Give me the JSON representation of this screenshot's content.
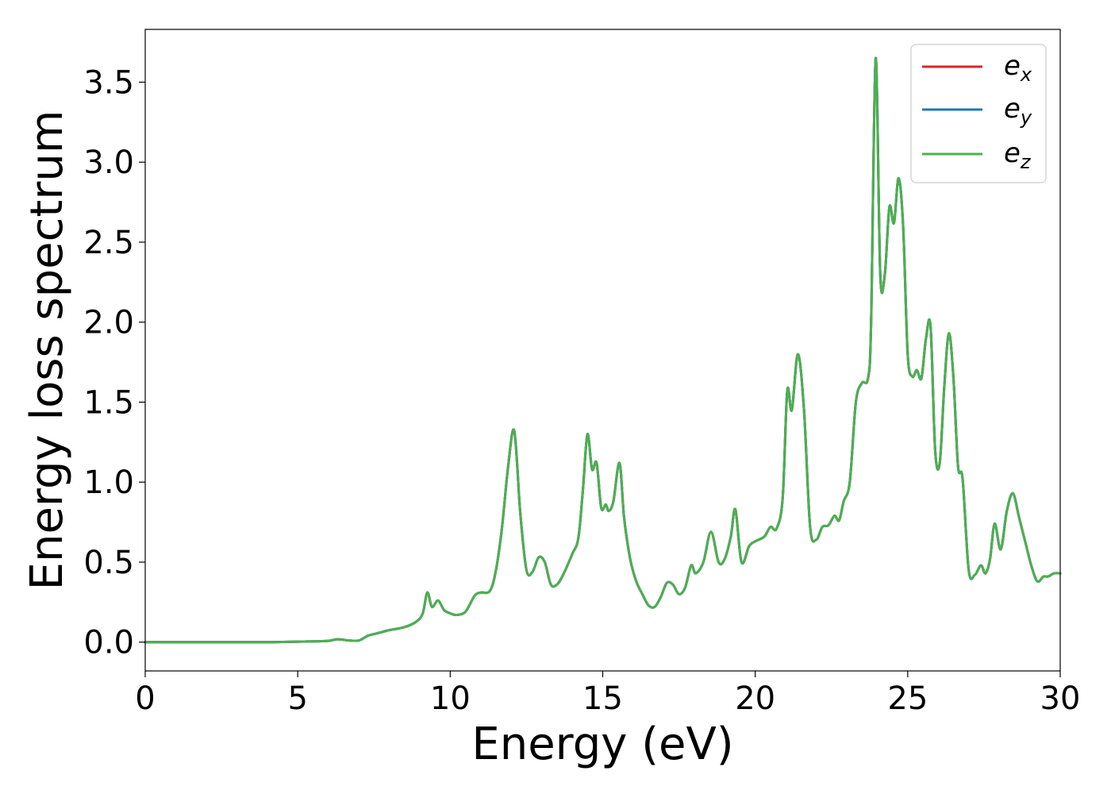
{
  "chart_data": {
    "type": "line",
    "title": "",
    "xlabel": "Energy (eV)",
    "ylabel": "Energy loss spectrum",
    "xlim": [
      0,
      30
    ],
    "ylim": [
      -0.18,
      3.83
    ],
    "xticks": [
      0,
      5,
      10,
      15,
      20,
      25,
      30
    ],
    "yticks": [
      0.0,
      0.5,
      1.0,
      1.5,
      2.0,
      2.5,
      3.0,
      3.5
    ],
    "grid": false,
    "legend_position": "top-right",
    "legend": [
      {
        "base": "e",
        "sub": "x",
        "color": "#d62728"
      },
      {
        "base": "e",
        "sub": "y",
        "color": "#1f77b4"
      },
      {
        "base": "e",
        "sub": "z",
        "color": "#4caf50"
      }
    ],
    "x": [
      0.0,
      2.0,
      4.0,
      5.5,
      6.0,
      6.3,
      6.6,
      7.0,
      7.3,
      7.6,
      8.0,
      8.3,
      8.6,
      8.9,
      9.1,
      9.25,
      9.4,
      9.6,
      9.8,
      10.0,
      10.2,
      10.5,
      10.8,
      11.0,
      11.3,
      11.5,
      11.7,
      11.9,
      12.1,
      12.3,
      12.5,
      12.7,
      12.9,
      13.1,
      13.3,
      13.5,
      13.7,
      14.0,
      14.2,
      14.35,
      14.5,
      14.65,
      14.8,
      14.95,
      15.1,
      15.2,
      15.35,
      15.55,
      15.7,
      15.9,
      16.1,
      16.3,
      16.5,
      16.7,
      16.9,
      17.1,
      17.3,
      17.5,
      17.7,
      17.9,
      18.05,
      18.3,
      18.55,
      18.8,
      19.0,
      19.2,
      19.35,
      19.55,
      19.8,
      20.0,
      20.3,
      20.5,
      20.7,
      20.9,
      21.05,
      21.2,
      21.4,
      21.6,
      21.8,
      22.0,
      22.2,
      22.4,
      22.6,
      22.75,
      22.9,
      23.1,
      23.3,
      23.5,
      23.7,
      23.8,
      23.95,
      24.1,
      24.25,
      24.4,
      24.55,
      24.7,
      24.85,
      25.0,
      25.15,
      25.3,
      25.45,
      25.6,
      25.75,
      25.9,
      26.05,
      26.2,
      26.35,
      26.5,
      26.65,
      26.8,
      27.0,
      27.2,
      27.4,
      27.55,
      27.7,
      27.85,
      28.05,
      28.25,
      28.45,
      28.65,
      28.85,
      29.05,
      29.25,
      29.45,
      29.6,
      29.8,
      30.0
    ],
    "series": [
      {
        "name": "",
        "values": [
          0.0,
          0.0,
          0.0,
          0.005,
          0.008,
          0.018,
          0.012,
          0.01,
          0.04,
          0.055,
          0.075,
          0.085,
          0.1,
          0.13,
          0.18,
          0.31,
          0.22,
          0.26,
          0.2,
          0.18,
          0.17,
          0.19,
          0.29,
          0.31,
          0.32,
          0.45,
          0.72,
          1.1,
          1.32,
          0.8,
          0.45,
          0.44,
          0.53,
          0.5,
          0.36,
          0.36,
          0.42,
          0.55,
          0.65,
          0.95,
          1.3,
          1.08,
          1.12,
          0.84,
          0.86,
          0.82,
          0.88,
          1.12,
          0.78,
          0.52,
          0.38,
          0.3,
          0.23,
          0.22,
          0.28,
          0.37,
          0.36,
          0.3,
          0.34,
          0.48,
          0.43,
          0.5,
          0.69,
          0.5,
          0.52,
          0.66,
          0.83,
          0.5,
          0.6,
          0.63,
          0.66,
          0.72,
          0.71,
          0.9,
          1.57,
          1.45,
          1.8,
          1.45,
          0.72,
          0.64,
          0.72,
          0.73,
          0.79,
          0.76,
          0.88,
          1.0,
          1.5,
          1.62,
          1.65,
          2.0,
          3.65,
          2.3,
          2.3,
          2.72,
          2.62,
          2.9,
          2.6,
          1.8,
          1.66,
          1.7,
          1.65,
          1.9,
          1.97,
          1.2,
          1.12,
          1.6,
          1.93,
          1.65,
          1.1,
          1.02,
          0.45,
          0.42,
          0.48,
          0.43,
          0.52,
          0.74,
          0.58,
          0.82,
          0.93,
          0.78,
          0.63,
          0.48,
          0.38,
          0.41,
          0.41,
          0.43,
          0.43
        ]
      }
    ]
  }
}
